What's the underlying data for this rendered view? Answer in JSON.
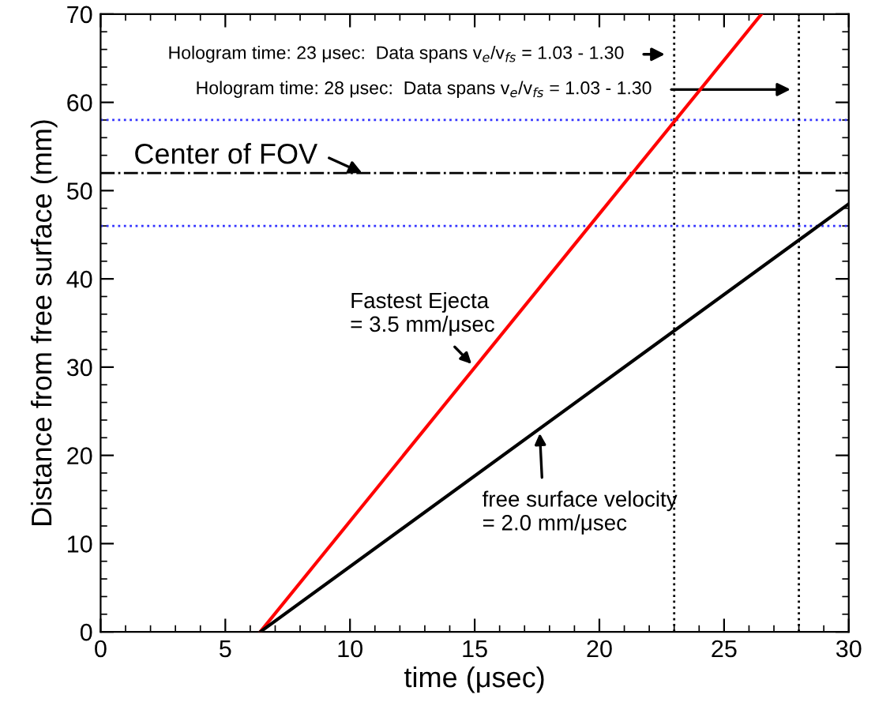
{
  "chart_data": {
    "type": "line",
    "xlabel": "time (μsec)",
    "ylabel": "Distance from free surface (mm)",
    "xlim": [
      0,
      30
    ],
    "ylim": [
      0,
      70
    ],
    "xticks": [
      0,
      5,
      10,
      15,
      20,
      25,
      30
    ],
    "yticks": [
      0,
      10,
      20,
      30,
      40,
      50,
      60,
      70
    ],
    "grid": false,
    "legend": false,
    "marker": "none",
    "line_style": "solid",
    "series": [
      {
        "color": "#ff0000",
        "x": [
          6.4,
          26.5
        ],
        "values": [
          0,
          70
        ]
      },
      {
        "color": "#000000",
        "x": [
          6.4,
          30
        ],
        "values": [
          0,
          48.5
        ]
      }
    ],
    "ref_lines": [
      {
        "axis": "y",
        "value": 58,
        "color": "#3333ff",
        "line_style": "dotted"
      },
      {
        "axis": "y",
        "value": 46,
        "color": "#3333ff",
        "line_style": "dotted"
      },
      {
        "axis": "y",
        "value": 52,
        "color": "#000000",
        "line_style": "dashdot"
      },
      {
        "axis": "x",
        "value": 23,
        "color": "#000000",
        "line_style": "dotted"
      },
      {
        "axis": "x",
        "value": 28,
        "color": "#000000",
        "line_style": "dotted"
      }
    ],
    "annotations": [
      "Hologram time: 23 μsec:  Data spans v$_{e}$/v$_{fs}$ = 1.03 - 1.30",
      "Hologram time: 28 μsec:  Data spans v$_{e}$/v$_{fs}$ = 1.03 - 1.30",
      "Center of FOV",
      {
        "text": "Fastest Ejecta\n= 3.5 mm/μsec",
        "x": 15,
        "y": 30
      },
      {
        "text": "free surface velocity\n= 2.0 mm/μsec",
        "x": 17.6,
        "y": 23
      }
    ]
  }
}
